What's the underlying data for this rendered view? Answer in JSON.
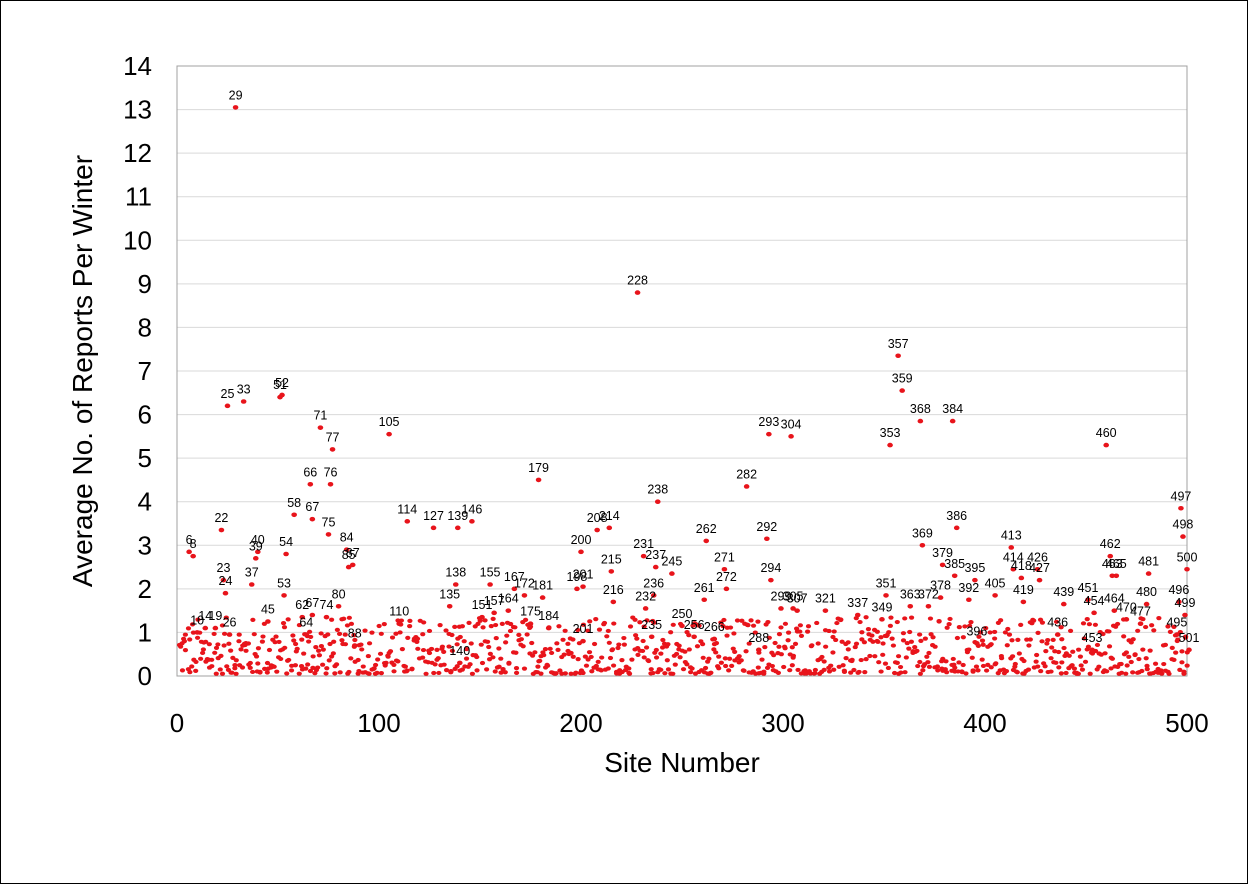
{
  "chart_data": {
    "type": "scatter",
    "title": "",
    "xlabel": "Site Number",
    "ylabel": "Average No. of Reports Per Winter",
    "xlim": [
      0,
      500
    ],
    "ylim": [
      0,
      14
    ],
    "x_ticks": [
      "0",
      "100",
      "200",
      "300",
      "400",
      "500"
    ],
    "y_ticks": [
      "0",
      "1",
      "2",
      "3",
      "4",
      "5",
      "6",
      "7",
      "8",
      "9",
      "10",
      "11",
      "12",
      "13",
      "14"
    ],
    "grid": "horizontal",
    "marker_color": "#e8141b",
    "series": [
      {
        "points": [
          {
            "x": 29,
            "y": 13.05,
            "label": "29"
          },
          {
            "x": 228,
            "y": 8.8,
            "label": "228"
          },
          {
            "x": 357,
            "y": 7.35,
            "label": "357"
          },
          {
            "x": 359,
            "y": 6.55,
            "label": "359"
          },
          {
            "x": 52,
            "y": 6.45,
            "label": "52"
          },
          {
            "x": 51,
            "y": 6.4,
            "label": "51"
          },
          {
            "x": 33,
            "y": 6.3,
            "label": "33"
          },
          {
            "x": 25,
            "y": 6.2,
            "label": "25"
          },
          {
            "x": 368,
            "y": 5.85,
            "label": "368"
          },
          {
            "x": 384,
            "y": 5.85,
            "label": "384"
          },
          {
            "x": 71,
            "y": 5.7,
            "label": "71"
          },
          {
            "x": 105,
            "y": 5.55,
            "label": "105"
          },
          {
            "x": 293,
            "y": 5.55,
            "label": "293"
          },
          {
            "x": 304,
            "y": 5.5,
            "label": "304"
          },
          {
            "x": 353,
            "y": 5.3,
            "label": "353"
          },
          {
            "x": 460,
            "y": 5.3,
            "label": "460"
          },
          {
            "x": 77,
            "y": 5.2,
            "label": "77"
          },
          {
            "x": 179,
            "y": 4.5,
            "label": "179"
          },
          {
            "x": 66,
            "y": 4.4,
            "label": "66"
          },
          {
            "x": 76,
            "y": 4.4,
            "label": "76"
          },
          {
            "x": 282,
            "y": 4.35,
            "label": "282"
          },
          {
            "x": 238,
            "y": 4.0,
            "label": "238"
          },
          {
            "x": 497,
            "y": 3.85,
            "label": "497"
          },
          {
            "x": 58,
            "y": 3.7,
            "label": "58"
          },
          {
            "x": 67,
            "y": 3.6,
            "label": "67"
          },
          {
            "x": 114,
            "y": 3.55,
            "label": "114"
          },
          {
            "x": 146,
            "y": 3.55,
            "label": "146"
          },
          {
            "x": 386,
            "y": 3.4,
            "label": "386"
          },
          {
            "x": 22,
            "y": 3.35,
            "label": "22"
          },
          {
            "x": 127,
            "y": 3.4,
            "label": "127"
          },
          {
            "x": 139,
            "y": 3.4,
            "label": "139"
          },
          {
            "x": 214,
            "y": 3.4,
            "label": "214"
          },
          {
            "x": 208,
            "y": 3.35,
            "label": "208"
          },
          {
            "x": 75,
            "y": 3.25,
            "label": "75"
          },
          {
            "x": 498,
            "y": 3.2,
            "label": "498"
          },
          {
            "x": 292,
            "y": 3.15,
            "label": "292"
          },
          {
            "x": 262,
            "y": 3.1,
            "label": "262"
          },
          {
            "x": 369,
            "y": 3.0,
            "label": "369"
          },
          {
            "x": 413,
            "y": 2.95,
            "label": "413"
          },
          {
            "x": 84,
            "y": 2.9,
            "label": "84"
          },
          {
            "x": 200,
            "y": 2.85,
            "label": "200"
          },
          {
            "x": 6,
            "y": 2.85,
            "label": "6"
          },
          {
            "x": 40,
            "y": 2.85,
            "label": "40"
          },
          {
            "x": 54,
            "y": 2.8,
            "label": "54"
          },
          {
            "x": 8,
            "y": 2.75,
            "label": "8"
          },
          {
            "x": 462,
            "y": 2.75,
            "label": "462"
          },
          {
            "x": 231,
            "y": 2.75,
            "label": "231"
          },
          {
            "x": 39,
            "y": 2.7,
            "label": "39"
          },
          {
            "x": 87,
            "y": 2.55,
            "label": "87"
          },
          {
            "x": 379,
            "y": 2.55,
            "label": "379"
          },
          {
            "x": 237,
            "y": 2.5,
            "label": "237"
          },
          {
            "x": 85,
            "y": 2.5,
            "label": "85"
          },
          {
            "x": 500,
            "y": 2.45,
            "label": "500"
          },
          {
            "x": 414,
            "y": 2.45,
            "label": "414"
          },
          {
            "x": 426,
            "y": 2.45,
            "label": "426"
          },
          {
            "x": 215,
            "y": 2.4,
            "label": "215"
          },
          {
            "x": 245,
            "y": 2.35,
            "label": "245"
          },
          {
            "x": 481,
            "y": 2.35,
            "label": "481"
          },
          {
            "x": 385,
            "y": 2.3,
            "label": "385"
          },
          {
            "x": 463,
            "y": 2.3,
            "label": "463"
          },
          {
            "x": 465,
            "y": 2.3,
            "label": "465"
          },
          {
            "x": 418,
            "y": 2.25,
            "label": "418"
          },
          {
            "x": 427,
            "y": 2.2,
            "label": "427"
          },
          {
            "x": 23,
            "y": 2.2,
            "label": "23"
          },
          {
            "x": 395,
            "y": 2.2,
            "label": "395"
          },
          {
            "x": 294,
            "y": 2.2,
            "label": "294"
          },
          {
            "x": 37,
            "y": 2.1,
            "label": "37"
          },
          {
            "x": 24,
            "y": 1.9,
            "label": "24"
          },
          {
            "x": 271,
            "y": 2.45,
            "label": "271"
          },
          {
            "x": 272,
            "y": 2.0,
            "label": "272"
          },
          {
            "x": 201,
            "y": 2.05,
            "label": "201"
          },
          {
            "x": 198,
            "y": 2.0,
            "label": "198"
          },
          {
            "x": 405,
            "y": 1.85,
            "label": "405"
          },
          {
            "x": 53,
            "y": 1.85,
            "label": "53"
          },
          {
            "x": 351,
            "y": 1.85,
            "label": "351"
          },
          {
            "x": 236,
            "y": 1.85,
            "label": "236"
          },
          {
            "x": 138,
            "y": 2.1,
            "label": "138"
          },
          {
            "x": 155,
            "y": 2.1,
            "label": "155"
          },
          {
            "x": 167,
            "y": 2.0,
            "label": "167"
          },
          {
            "x": 172,
            "y": 1.85,
            "label": "172"
          },
          {
            "x": 181,
            "y": 1.8,
            "label": "181"
          },
          {
            "x": 378,
            "y": 1.8,
            "label": "378"
          },
          {
            "x": 451,
            "y": 1.75,
            "label": "451"
          },
          {
            "x": 392,
            "y": 1.75,
            "label": "392"
          },
          {
            "x": 439,
            "y": 1.65,
            "label": "439"
          },
          {
            "x": 419,
            "y": 1.7,
            "label": "419"
          },
          {
            "x": 216,
            "y": 1.7,
            "label": "216"
          },
          {
            "x": 496,
            "y": 1.7,
            "label": "496"
          },
          {
            "x": 480,
            "y": 1.65,
            "label": "480"
          },
          {
            "x": 80,
            "y": 1.6,
            "label": "80"
          },
          {
            "x": 363,
            "y": 1.6,
            "label": "363"
          },
          {
            "x": 372,
            "y": 1.6,
            "label": "372"
          },
          {
            "x": 261,
            "y": 1.75,
            "label": "261"
          },
          {
            "x": 232,
            "y": 1.55,
            "label": "232"
          },
          {
            "x": 135,
            "y": 1.6,
            "label": "135"
          },
          {
            "x": 164,
            "y": 1.5,
            "label": "164"
          },
          {
            "x": 321,
            "y": 1.5,
            "label": "321"
          },
          {
            "x": 299,
            "y": 1.55,
            "label": "299"
          },
          {
            "x": 305,
            "y": 1.55,
            "label": "305"
          },
          {
            "x": 307,
            "y": 1.5,
            "label": "307"
          },
          {
            "x": 62,
            "y": 1.35,
            "label": "62"
          },
          {
            "x": 67,
            "y": 1.4,
            "label": "67"
          },
          {
            "x": 74,
            "y": 1.35,
            "label": "74"
          },
          {
            "x": 499,
            "y": 1.4,
            "label": "499"
          },
          {
            "x": 464,
            "y": 1.5,
            "label": "464"
          },
          {
            "x": 454,
            "y": 1.45,
            "label": "454"
          },
          {
            "x": 157,
            "y": 1.45,
            "label": "157"
          },
          {
            "x": 151,
            "y": 1.35,
            "label": "151"
          },
          {
            "x": 337,
            "y": 1.4,
            "label": "337"
          },
          {
            "x": 349,
            "y": 1.3,
            "label": "349"
          },
          {
            "x": 45,
            "y": 1.25,
            "label": "45"
          },
          {
            "x": 470,
            "y": 1.3,
            "label": "470"
          },
          {
            "x": 110,
            "y": 1.2,
            "label": "110"
          },
          {
            "x": 10,
            "y": 1.0,
            "label": "10"
          },
          {
            "x": 14,
            "y": 1.1,
            "label": "14"
          },
          {
            "x": 19,
            "y": 1.1,
            "label": "19"
          },
          {
            "x": 26,
            "y": 0.95,
            "label": "26"
          },
          {
            "x": 250,
            "y": 1.15,
            "label": "250"
          },
          {
            "x": 175,
            "y": 1.2,
            "label": "175"
          },
          {
            "x": 477,
            "y": 1.2,
            "label": "477"
          },
          {
            "x": 184,
            "y": 1.1,
            "label": "184"
          },
          {
            "x": 88,
            "y": 0.7,
            "label": "88"
          },
          {
            "x": 64,
            "y": 0.95,
            "label": "64"
          },
          {
            "x": 436,
            "y": 0.95,
            "label": "436"
          },
          {
            "x": 495,
            "y": 0.95,
            "label": "495"
          },
          {
            "x": 266,
            "y": 0.85,
            "label": "266"
          },
          {
            "x": 256,
            "y": 0.9,
            "label": "256"
          },
          {
            "x": 235,
            "y": 0.9,
            "label": "235"
          },
          {
            "x": 201,
            "y": 0.8,
            "label": "201"
          },
          {
            "x": 396,
            "y": 0.75,
            "label": "396"
          },
          {
            "x": 288,
            "y": 0.6,
            "label": "288"
          },
          {
            "x": 453,
            "y": 0.6,
            "label": "453"
          },
          {
            "x": 501,
            "y": 0.6,
            "label": "501"
          },
          {
            "x": 140,
            "y": 0.3,
            "label": "140"
          }
        ]
      }
    ]
  }
}
